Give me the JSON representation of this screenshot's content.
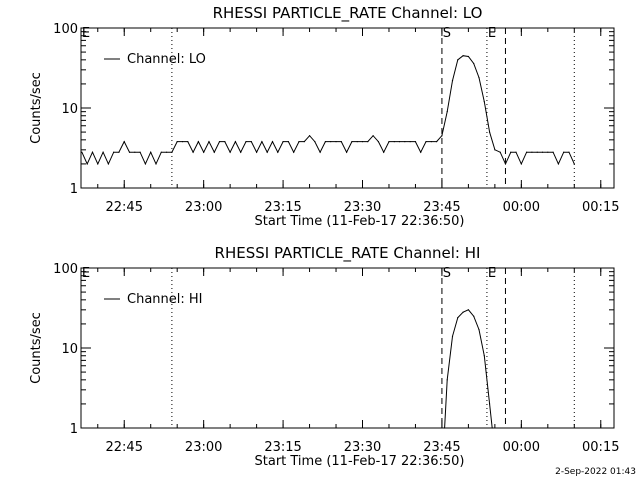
{
  "footer_date": "2-Sep-2022 01:43",
  "chart_data": [
    {
      "type": "line",
      "title": "RHESSI PARTICLE_RATE Channel: LO",
      "xlabel": "Start Time (11-Feb-17 22:36:50)",
      "ylabel": "Counts/sec",
      "xscale": "time",
      "yscale": "log",
      "xlim": [
        "22:36:50",
        "00:17:30"
      ],
      "ylim": [
        1,
        100
      ],
      "xticks": [
        "22:45",
        "23:00",
        "23:15",
        "23:30",
        "23:45",
        "00:00",
        "00:15"
      ],
      "yticks": [
        "1",
        "10",
        "100"
      ],
      "legend": {
        "position": "top-left",
        "label": "Channel: LO"
      },
      "markers": [
        {
          "label": "E",
          "time": "22:36:50",
          "style": "none"
        },
        {
          "label": "",
          "time": "22:54:00",
          "style": "dotted"
        },
        {
          "label": "S",
          "time": "23:45:00",
          "style": "dashed"
        },
        {
          "label": "E",
          "time": "23:53:30",
          "style": "dotted"
        },
        {
          "label": "",
          "time": "23:57:00",
          "style": "dashed"
        },
        {
          "label": "",
          "time": "00:10:00",
          "style": "dotted"
        }
      ],
      "series": [
        {
          "name": "Channel: LO",
          "x": [
            "22:37",
            "22:38",
            "22:39",
            "22:40",
            "22:41",
            "22:42",
            "22:43",
            "22:44",
            "22:45",
            "22:46",
            "22:47",
            "22:48",
            "22:49",
            "22:50",
            "22:51",
            "22:52",
            "22:53",
            "22:54",
            "22:55",
            "22:56",
            "22:57",
            "22:58",
            "22:59",
            "23:00",
            "23:01",
            "23:02",
            "23:03",
            "23:04",
            "23:05",
            "23:06",
            "23:07",
            "23:08",
            "23:09",
            "23:10",
            "23:11",
            "23:12",
            "23:13",
            "23:14",
            "23:15",
            "23:16",
            "23:17",
            "23:18",
            "23:19",
            "23:20",
            "23:21",
            "23:22",
            "23:23",
            "23:24",
            "23:25",
            "23:26",
            "23:27",
            "23:28",
            "23:29",
            "23:30",
            "23:31",
            "23:32",
            "23:33",
            "23:34",
            "23:35",
            "23:36",
            "23:37",
            "23:38",
            "23:39",
            "23:40",
            "23:41",
            "23:42",
            "23:43",
            "23:44",
            "23:45",
            "23:46",
            "23:47",
            "23:48",
            "23:49",
            "23:50",
            "23:51",
            "23:52",
            "23:53",
            "23:54",
            "23:55",
            "23:56",
            "23:57",
            "23:58",
            "23:59",
            "00:00",
            "00:01",
            "00:02",
            "00:03",
            "00:04",
            "00:05",
            "00:06",
            "00:07",
            "00:08",
            "00:09",
            "00:10"
          ],
          "values": [
            2.8,
            2.0,
            2.8,
            2.0,
            2.8,
            2.0,
            2.8,
            2.8,
            3.8,
            2.8,
            2.8,
            2.8,
            2.0,
            2.8,
            2.0,
            2.8,
            2.8,
            2.8,
            3.8,
            3.8,
            3.8,
            2.8,
            3.8,
            2.8,
            3.8,
            2.8,
            3.8,
            3.8,
            2.8,
            3.8,
            2.8,
            3.8,
            3.8,
            2.8,
            3.8,
            2.8,
            3.8,
            2.8,
            3.8,
            3.8,
            2.8,
            3.8,
            3.8,
            4.5,
            3.8,
            2.8,
            3.8,
            3.8,
            3.8,
            3.8,
            2.8,
            3.8,
            3.8,
            3.8,
            3.8,
            4.5,
            3.8,
            2.8,
            3.8,
            3.8,
            3.8,
            3.8,
            3.8,
            3.8,
            2.8,
            3.8,
            3.8,
            3.8,
            4.5,
            9,
            22,
            40,
            45,
            44,
            36,
            24,
            12,
            5,
            3.0,
            2.8,
            2.0,
            2.8,
            2.8,
            2.0,
            2.8,
            2.8,
            2.8,
            2.8,
            2.8,
            2.8,
            2.0,
            2.8,
            2.8,
            2.0
          ]
        }
      ]
    },
    {
      "type": "line",
      "title": "RHESSI PARTICLE_RATE Channel: HI",
      "xlabel": "Start Time (11-Feb-17 22:36:50)",
      "ylabel": "Counts/sec",
      "xscale": "time",
      "yscale": "log",
      "xlim": [
        "22:36:50",
        "00:17:30"
      ],
      "ylim": [
        1,
        100
      ],
      "xticks": [
        "22:45",
        "23:00",
        "23:15",
        "23:30",
        "23:45",
        "00:00",
        "00:15"
      ],
      "yticks": [
        "1",
        "10",
        "100"
      ],
      "legend": {
        "position": "top-left",
        "label": "Channel: HI"
      },
      "markers": [
        {
          "label": "E",
          "time": "22:36:50",
          "style": "none"
        },
        {
          "label": "",
          "time": "22:54:00",
          "style": "dotted"
        },
        {
          "label": "S",
          "time": "23:45:00",
          "style": "dashed"
        },
        {
          "label": "E",
          "time": "23:53:30",
          "style": "dotted"
        },
        {
          "label": "",
          "time": "23:57:00",
          "style": "dashed"
        },
        {
          "label": "",
          "time": "00:10:00",
          "style": "dotted"
        }
      ],
      "series": [
        {
          "name": "Channel: HI",
          "x": [
            "23:45:30",
            "23:46",
            "23:47",
            "23:48",
            "23:49",
            "23:50",
            "23:51",
            "23:52",
            "23:53",
            "23:54",
            "23:54:30"
          ],
          "values": [
            1.0,
            4,
            14,
            24,
            28,
            30,
            25,
            17,
            8,
            2,
            1.0
          ]
        }
      ]
    }
  ]
}
